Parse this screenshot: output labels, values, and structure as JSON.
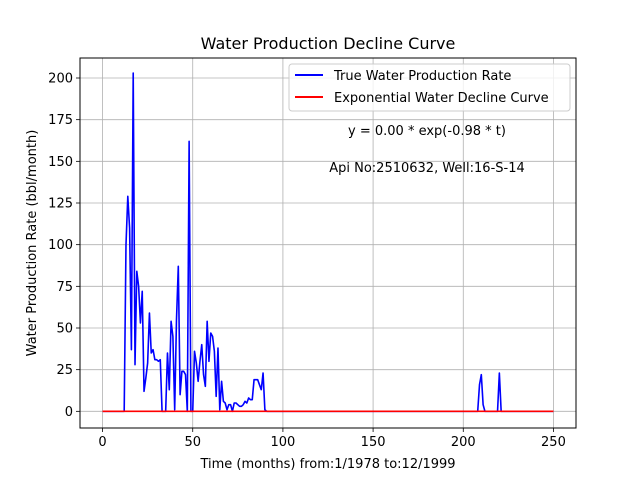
{
  "chart_data": {
    "type": "line",
    "title": "Water Production Decline Curve",
    "xlabel": "Time (months) from:1/1978 to:12/1999",
    "ylabel": "Water Production Rate (bbl/month)",
    "xlim": [
      -12.5,
      262.5
    ],
    "ylim": [
      -10,
      212
    ],
    "xticks": [
      0,
      50,
      100,
      150,
      200,
      250
    ],
    "yticks": [
      0,
      25,
      50,
      75,
      100,
      125,
      150,
      175,
      200
    ],
    "grid": true,
    "legend_position": "upper-right",
    "annotations": [
      "y = 0.00 * exp(-0.98 * t)",
      "Api No:2510632, Well:16-S-14"
    ],
    "series": [
      {
        "name": "True Water Production Rate",
        "color": "#0000ff",
        "points": [
          [
            0,
            0
          ],
          [
            12,
            0
          ],
          [
            13,
            100
          ],
          [
            14,
            129
          ],
          [
            15,
            110
          ],
          [
            16,
            37
          ],
          [
            17,
            203
          ],
          [
            18,
            28
          ],
          [
            19,
            84
          ],
          [
            20,
            75
          ],
          [
            21,
            53
          ],
          [
            22,
            72
          ],
          [
            23,
            12
          ],
          [
            24,
            20
          ],
          [
            25,
            29
          ],
          [
            26,
            59
          ],
          [
            27,
            35
          ],
          [
            28,
            37
          ],
          [
            29,
            31
          ],
          [
            30,
            31
          ],
          [
            31,
            30
          ],
          [
            32,
            31
          ],
          [
            33,
            0
          ],
          [
            34,
            0
          ],
          [
            35,
            0
          ],
          [
            36,
            35
          ],
          [
            37,
            13
          ],
          [
            38,
            54
          ],
          [
            39,
            45
          ],
          [
            40,
            1
          ],
          [
            41,
            55
          ],
          [
            42,
            87
          ],
          [
            43,
            10
          ],
          [
            44,
            24
          ],
          [
            45,
            24
          ],
          [
            46,
            22
          ],
          [
            47,
            0
          ],
          [
            48,
            162
          ],
          [
            49,
            0
          ],
          [
            50,
            0
          ],
          [
            51,
            36
          ],
          [
            52,
            29
          ],
          [
            53,
            18
          ],
          [
            54,
            30
          ],
          [
            55,
            40
          ],
          [
            56,
            22
          ],
          [
            57,
            15
          ],
          [
            58,
            54
          ],
          [
            59,
            30
          ],
          [
            60,
            47
          ],
          [
            61,
            45
          ],
          [
            62,
            36
          ],
          [
            63,
            9
          ],
          [
            64,
            38
          ],
          [
            65,
            1
          ],
          [
            66,
            18
          ],
          [
            67,
            6
          ],
          [
            68,
            5
          ],
          [
            69,
            1
          ],
          [
            70,
            4
          ],
          [
            71,
            4
          ],
          [
            72,
            0
          ],
          [
            73,
            5
          ],
          [
            74,
            5
          ],
          [
            75,
            4
          ],
          [
            76,
            3
          ],
          [
            77,
            3
          ],
          [
            78,
            4
          ],
          [
            79,
            6
          ],
          [
            80,
            5
          ],
          [
            81,
            8
          ],
          [
            82,
            7
          ],
          [
            83,
            7
          ],
          [
            84,
            19
          ],
          [
            85,
            19
          ],
          [
            86,
            19
          ],
          [
            87,
            16
          ],
          [
            88,
            13
          ],
          [
            89,
            23
          ],
          [
            90,
            1
          ],
          [
            91,
            0
          ],
          [
            92,
            0
          ],
          [
            208,
            0
          ],
          [
            209,
            16
          ],
          [
            210,
            22
          ],
          [
            211,
            4
          ],
          [
            212,
            0
          ],
          [
            219,
            0
          ],
          [
            220,
            23
          ],
          [
            221,
            0
          ],
          [
            250,
            0
          ]
        ]
      },
      {
        "name": "Exponential Water Decline Curve",
        "color": "#ff0000",
        "points": [
          [
            0,
            0
          ],
          [
            250,
            0
          ]
        ]
      }
    ]
  }
}
